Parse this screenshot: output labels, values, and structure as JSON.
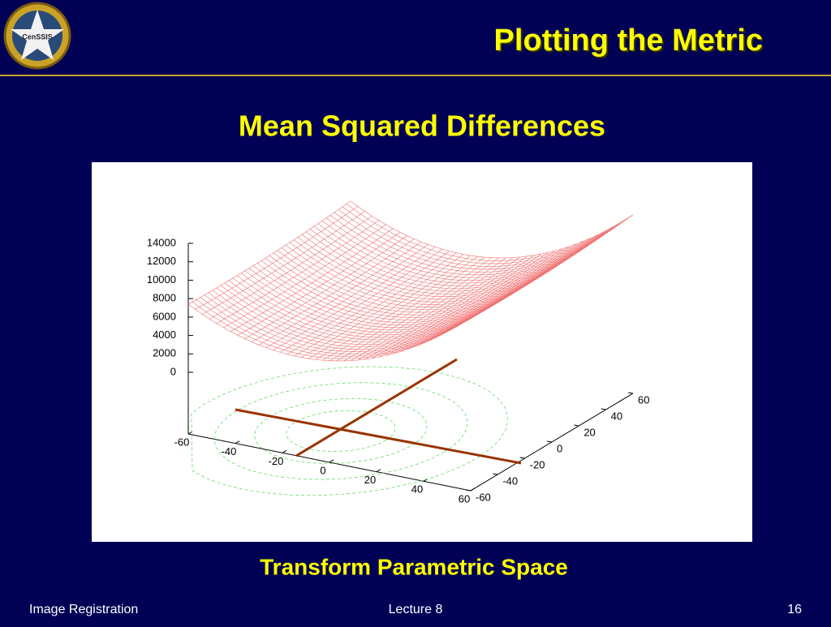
{
  "header": {
    "logo": "CenSSIS",
    "title": "Plotting the Metric"
  },
  "subtitle": "Mean Squared Differences",
  "chart": {
    "zticks": [
      0,
      2000,
      4000,
      6000,
      8000,
      10000,
      12000,
      14000
    ],
    "xticks": [
      -60,
      -40,
      -20,
      0,
      20,
      40,
      60
    ],
    "yticks": [
      -60,
      -40,
      -20,
      0,
      20,
      40,
      60
    ]
  },
  "caption": "Transform Parametric Space",
  "footer": {
    "left": "Image Registration",
    "center": "Lecture 8",
    "right": "16"
  }
}
